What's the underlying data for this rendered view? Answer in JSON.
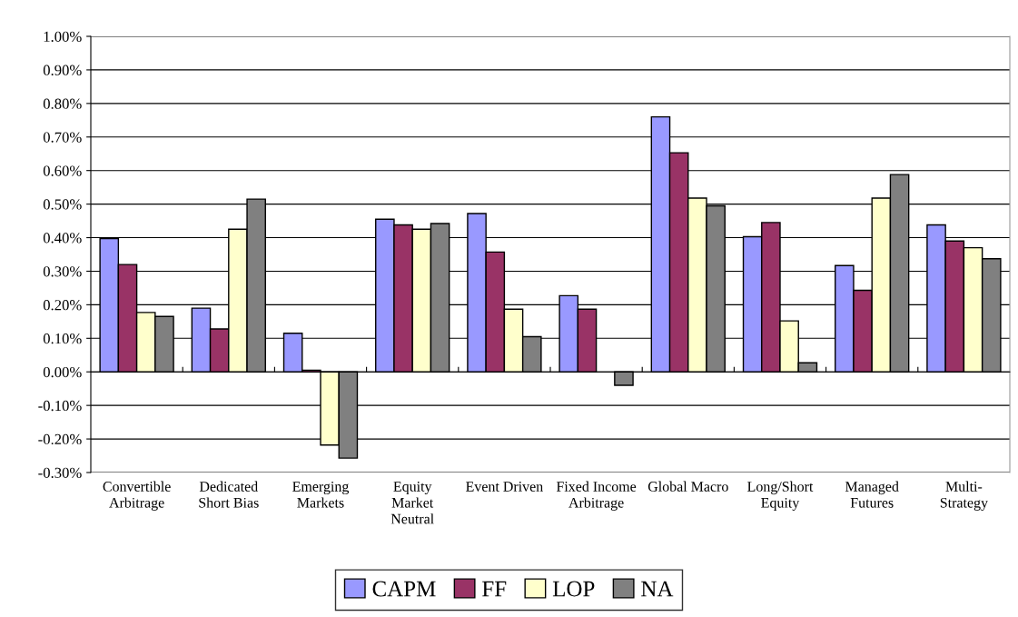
{
  "chart_data": {
    "type": "bar",
    "categories": [
      "Convertible Arbitrage",
      "Dedicated Short Bias",
      "Emerging Markets",
      "Equity Market Neutral",
      "Event Driven",
      "Fixed Income Arbitrage",
      "Global Macro",
      "Long/Short Equity",
      "Managed Futures",
      "Multi-Strategy"
    ],
    "series": [
      {
        "name": "CAPM",
        "color": "#9999ff",
        "values": [
          0.397,
          0.19,
          0.115,
          0.455,
          0.472,
          0.227,
          0.76,
          0.403,
          0.317,
          0.438
        ]
      },
      {
        "name": "FF",
        "color": "#993366",
        "values": [
          0.32,
          0.128,
          0.005,
          0.438,
          0.357,
          0.187,
          0.653,
          0.445,
          0.243,
          0.39
        ]
      },
      {
        "name": "LOP",
        "color": "#ffffcc",
        "values": [
          0.177,
          0.425,
          -0.218,
          0.425,
          0.187,
          null,
          0.518,
          0.152,
          0.518,
          0.37
        ]
      },
      {
        "name": "NA",
        "color": "#808080",
        "values": [
          0.165,
          0.515,
          -0.257,
          0.442,
          0.105,
          -0.04,
          0.495,
          0.027,
          0.588,
          0.337
        ]
      }
    ],
    "ylim": [
      -0.3,
      1.0
    ],
    "yticks": [
      {
        "value": -0.3,
        "label": "-0.30%"
      },
      {
        "value": -0.2,
        "label": "-0.20%"
      },
      {
        "value": -0.1,
        "label": "-0.10%"
      },
      {
        "value": 0,
        "label": "0.00%"
      },
      {
        "value": 0.1,
        "label": "0.10%"
      },
      {
        "value": 0.2,
        "label": "0.20%"
      },
      {
        "value": 0.3,
        "label": "0.30%"
      },
      {
        "value": 0.4,
        "label": "0.40%"
      },
      {
        "value": 0.5,
        "label": "0.50%"
      },
      {
        "value": 0.6,
        "label": "0.60%"
      },
      {
        "value": 0.7,
        "label": "0.70%"
      },
      {
        "value": 0.8,
        "label": "0.80%"
      },
      {
        "value": 0.9,
        "label": "0.90%"
      },
      {
        "value": 1.0,
        "label": "1.00%"
      }
    ],
    "grid": "y",
    "legend": "bottom"
  }
}
